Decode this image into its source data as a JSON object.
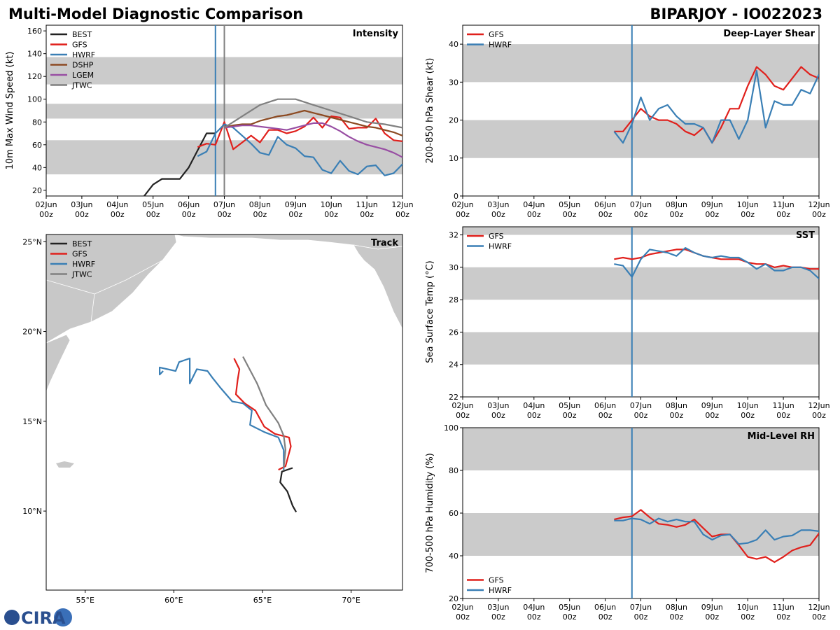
{
  "header": {
    "title_left": "Multi-Model Diagnostic Comparison",
    "title_right": "BIPARJOY - IO022023",
    "logo": "CIRA"
  },
  "chart_data": [
    {
      "type": "line",
      "title": "Intensity",
      "ylabel": "10m Max Wind Speed (kt)",
      "xlim": [
        "02Jun 00z",
        "12Jun 00z"
      ],
      "xticks": [
        "02Jun 00z",
        "03Jun 00z",
        "04Jun 00z",
        "05Jun 00z",
        "06Jun 00z",
        "07Jun 00z",
        "08Jun 00z",
        "09Jun 00z",
        "10Jun 00z",
        "11Jun 00z",
        "12Jun 00z"
      ],
      "ylim": [
        15,
        165
      ],
      "yticks": [
        20,
        40,
        60,
        80,
        100,
        120,
        140,
        160
      ],
      "bands": [
        [
          34,
          64
        ],
        [
          83,
          96
        ],
        [
          113,
          137
        ]
      ],
      "markers": [
        {
          "x": "06Jun 18z",
          "color": "#3a7fb5"
        },
        {
          "x": "07Jun 00z",
          "color": "#808080"
        }
      ],
      "legend": "upper left",
      "x": [
        "06Jun 06z",
        "06Jun 12z",
        "06Jun 18z",
        "07Jun 00z",
        "07Jun 06z",
        "07Jun 12z",
        "07Jun 18z",
        "08Jun 00z",
        "08Jun 06z",
        "08Jun 12z",
        "08Jun 18z",
        "09Jun 00z",
        "09Jun 06z",
        "09Jun 12z",
        "09Jun 18z",
        "10Jun 00z",
        "10Jun 06z",
        "10Jun 12z",
        "10Jun 18z",
        "11Jun 00z",
        "11Jun 06z",
        "11Jun 12z",
        "11Jun 18z",
        "12Jun 00z"
      ],
      "series": [
        {
          "name": "BEST",
          "color": "#222222",
          "x": [
            "04Jun 18z",
            "05Jun 00z",
            "05Jun 06z",
            "05Jun 12z",
            "05Jun 18z",
            "06Jun 00z",
            "06Jun 06z",
            "06Jun 12z",
            "06Jun 18z"
          ],
          "values": [
            15,
            25,
            30,
            30,
            30,
            40,
            55,
            70,
            70
          ]
        },
        {
          "name": "GFS",
          "color": "#e0201c",
          "values": [
            58,
            61,
            60,
            80,
            56,
            62,
            68,
            62,
            73,
            73,
            70,
            72,
            76,
            84,
            75,
            85,
            84,
            74,
            75,
            75,
            83,
            70,
            64,
            63
          ]
        },
        {
          "name": "HWRF",
          "color": "#3a7fb5",
          "values": [
            50,
            54,
            70,
            78,
            75,
            68,
            61,
            53,
            51,
            67,
            60,
            57,
            50,
            49,
            38,
            35,
            46,
            37,
            34,
            41,
            42,
            33,
            35,
            43
          ]
        },
        {
          "name": "DSHP",
          "color": "#8c4a22",
          "x": [
            "07Jun 00z",
            "07Jun 06z",
            "07Jun 12z",
            "07Jun 18z",
            "08Jun 00z",
            "08Jun 06z",
            "08Jun 12z",
            "08Jun 18z",
            "09Jun 00z",
            "09Jun 06z",
            "09Jun 12z",
            "09Jun 18z",
            "10Jun 00z",
            "10Jun 06z",
            "10Jun 12z",
            "10Jun 18z",
            "11Jun 00z",
            "11Jun 06z",
            "11Jun 12z",
            "11Jun 18z",
            "12Jun 00z"
          ],
          "values": [
            75,
            77,
            78,
            78,
            81,
            83,
            85,
            86,
            88,
            90,
            88,
            86,
            84,
            82,
            80,
            78,
            76,
            75,
            73,
            71,
            68
          ]
        },
        {
          "name": "LGEM",
          "color": "#984ea3",
          "x": [
            "07Jun 00z",
            "07Jun 06z",
            "07Jun 12z",
            "07Jun 18z",
            "08Jun 00z",
            "08Jun 06z",
            "08Jun 12z",
            "08Jun 18z",
            "09Jun 00z",
            "09Jun 06z",
            "09Jun 12z",
            "09Jun 18z",
            "10Jun 00z",
            "10Jun 06z",
            "10Jun 12z",
            "10Jun 18z",
            "11Jun 00z",
            "11Jun 06z",
            "11Jun 12z",
            "11Jun 18z",
            "12Jun 00z"
          ],
          "values": [
            75,
            76,
            77,
            77,
            76,
            75,
            74,
            73,
            75,
            77,
            79,
            79,
            76,
            72,
            67,
            63,
            60,
            58,
            56,
            53,
            49
          ]
        },
        {
          "name": "JTWC",
          "color": "#808080",
          "x": [
            "07Jun 00z",
            "07Jun 12z",
            "08Jun 00z",
            "08Jun 12z",
            "09Jun 00z",
            "09Jun 12z",
            "10Jun 00z",
            "10Jun 12z",
            "11Jun 00z",
            "11Jun 12z",
            "12Jun 00z"
          ],
          "values": [
            75,
            85,
            95,
            100,
            100,
            95,
            90,
            85,
            80,
            78,
            75
          ]
        }
      ]
    },
    {
      "type": "map",
      "title": "Track",
      "xlim": [
        52.8,
        72.9
      ],
      "xticks": [
        {
          "value": 55,
          "label": "55°E"
        },
        {
          "value": 60,
          "label": "60°E"
        },
        {
          "value": 65,
          "label": "65°E"
        },
        {
          "value": 70,
          "label": "70°E"
        }
      ],
      "ylim": [
        5.6,
        25.4
      ],
      "yticks": [
        {
          "value": 10,
          "label": "10°N"
        },
        {
          "value": 15,
          "label": "15°N"
        },
        {
          "value": 20,
          "label": "20°N"
        },
        {
          "value": 25,
          "label": "25°N"
        }
      ],
      "legend": "upper left",
      "series": [
        {
          "name": "BEST",
          "color": "#222222",
          "x": [
            66.9,
            66.7,
            66.4,
            66.0,
            66.1,
            66.7
          ],
          "values": [
            9.95,
            10.3,
            11.1,
            11.6,
            12.2,
            12.4
          ]
        },
        {
          "name": "GFS",
          "color": "#e0201c",
          "x": [
            65.9,
            66.3,
            66.6,
            66.5,
            65.7,
            65.1,
            64.6,
            64.0,
            63.5,
            63.6,
            63.7,
            63.4
          ],
          "values": [
            12.3,
            12.5,
            13.6,
            14.1,
            14.3,
            14.7,
            15.6,
            16.0,
            16.5,
            17.3,
            17.9,
            18.5
          ]
        },
        {
          "name": "HWRF",
          "color": "#3a7fb5",
          "x": [
            66.2,
            66.2,
            65.9,
            65.1,
            64.3,
            64.4,
            63.9,
            63.3,
            62.6,
            62.2,
            61.9,
            61.3,
            60.9,
            60.9,
            60.3,
            60.1,
            59.2,
            59.2,
            59.4
          ],
          "values": [
            12.3,
            13.4,
            14.1,
            14.4,
            14.8,
            15.6,
            16.0,
            16.1,
            16.9,
            17.4,
            17.8,
            17.9,
            17.1,
            18.5,
            18.3,
            17.8,
            18.0,
            17.6,
            17.8
          ]
        },
        {
          "name": "JTWC",
          "color": "#808080",
          "x": [
            66.2,
            66.3,
            66.2,
            65.9,
            65.2,
            64.7,
            63.9
          ],
          "values": [
            12.4,
            13.4,
            14.2,
            14.9,
            15.9,
            17.1,
            18.6
          ]
        }
      ]
    },
    {
      "type": "line",
      "title": "Deep-Layer Shear",
      "ylabel": "200-850 hPa Shear (kt)",
      "xlim": [
        "02Jun 00z",
        "12Jun 00z"
      ],
      "xticks": [
        "02Jun 00z",
        "03Jun 00z",
        "04Jun 00z",
        "05Jun 00z",
        "06Jun 00z",
        "07Jun 00z",
        "08Jun 00z",
        "09Jun 00z",
        "10Jun 00z",
        "11Jun 00z",
        "12Jun 00z"
      ],
      "ylim": [
        0,
        45
      ],
      "yticks": [
        0,
        10,
        20,
        30,
        40
      ],
      "bands": [
        [
          10,
          20
        ],
        [
          30,
          40
        ]
      ],
      "markers": [
        {
          "x": "06Jun 18z",
          "color": "#3a7fb5"
        }
      ],
      "legend": "upper left",
      "x": [
        "06Jun 06z",
        "06Jun 12z",
        "06Jun 18z",
        "07Jun 00z",
        "07Jun 06z",
        "07Jun 12z",
        "07Jun 18z",
        "08Jun 00z",
        "08Jun 06z",
        "08Jun 12z",
        "08Jun 18z",
        "09Jun 00z",
        "09Jun 06z",
        "09Jun 12z",
        "09Jun 18z",
        "10Jun 00z",
        "10Jun 06z",
        "10Jun 12z",
        "10Jun 18z",
        "11Jun 00z",
        "11Jun 06z",
        "11Jun 12z",
        "11Jun 18z",
        "12Jun 00z"
      ],
      "series": [
        {
          "name": "GFS",
          "color": "#e0201c",
          "values": [
            17,
            17,
            20,
            23,
            21,
            20,
            20,
            19,
            17,
            16,
            18,
            14,
            18,
            23,
            23,
            29,
            34,
            32,
            29,
            28,
            31,
            34,
            32,
            31
          ]
        },
        {
          "name": "HWRF",
          "color": "#3a7fb5",
          "values": [
            17,
            14,
            19,
            26,
            20,
            23,
            24,
            21,
            19,
            19,
            18,
            14,
            20,
            20,
            15,
            20,
            33,
            18,
            25,
            24,
            24,
            28,
            27,
            32
          ]
        }
      ]
    },
    {
      "type": "line",
      "title": "SST",
      "ylabel": "Sea Surface Temp (°C)",
      "xlim": [
        "02Jun 00z",
        "12Jun 00z"
      ],
      "xticks": [
        "02Jun 00z",
        "03Jun 00z",
        "04Jun 00z",
        "05Jun 00z",
        "06Jun 00z",
        "07Jun 00z",
        "08Jun 00z",
        "09Jun 00z",
        "10Jun 00z",
        "11Jun 00z",
        "12Jun 00z"
      ],
      "ylim": [
        22,
        32.5
      ],
      "yticks": [
        22,
        24,
        26,
        28,
        30,
        32
      ],
      "bands": [
        [
          24,
          26
        ],
        [
          28,
          30
        ],
        [
          32,
          34
        ]
      ],
      "markers": [
        {
          "x": "06Jun 18z",
          "color": "#3a7fb5"
        }
      ],
      "legend": "upper left",
      "x": [
        "06Jun 06z",
        "06Jun 12z",
        "06Jun 18z",
        "07Jun 00z",
        "07Jun 06z",
        "07Jun 12z",
        "07Jun 18z",
        "08Jun 00z",
        "08Jun 06z",
        "08Jun 12z",
        "08Jun 18z",
        "09Jun 00z",
        "09Jun 06z",
        "09Jun 12z",
        "09Jun 18z",
        "10Jun 00z",
        "10Jun 06z",
        "10Jun 12z",
        "10Jun 18z",
        "11Jun 00z",
        "11Jun 06z",
        "11Jun 12z",
        "11Jun 18z",
        "12Jun 00z"
      ],
      "series": [
        {
          "name": "GFS",
          "color": "#e0201c",
          "values": [
            30.5,
            30.6,
            30.5,
            30.6,
            30.8,
            30.9,
            31.0,
            31.1,
            31.1,
            30.9,
            30.7,
            30.6,
            30.5,
            30.5,
            30.5,
            30.3,
            30.2,
            30.2,
            30.0,
            30.1,
            30.0,
            30.0,
            29.9,
            29.9
          ]
        },
        {
          "name": "HWRF",
          "color": "#3a7fb5",
          "values": [
            30.2,
            30.1,
            29.4,
            30.5,
            31.1,
            31.0,
            30.9,
            30.7,
            31.2,
            30.9,
            30.7,
            30.6,
            30.7,
            30.6,
            30.6,
            30.3,
            29.9,
            30.2,
            29.8,
            29.8,
            30.0,
            30.0,
            29.8,
            29.3
          ]
        }
      ]
    },
    {
      "type": "line",
      "title": "Mid-Level RH",
      "ylabel": "700-500 hPa Humidity (%)",
      "xlim": [
        "02Jun 00z",
        "12Jun 00z"
      ],
      "xticks": [
        "02Jun 00z",
        "03Jun 00z",
        "04Jun 00z",
        "05Jun 00z",
        "06Jun 00z",
        "07Jun 00z",
        "08Jun 00z",
        "09Jun 00z",
        "10Jun 00z",
        "11Jun 00z",
        "12Jun 00z"
      ],
      "ylim": [
        20,
        100
      ],
      "yticks": [
        20,
        40,
        60,
        80,
        100
      ],
      "bands": [
        [
          40,
          60
        ],
        [
          80,
          100
        ]
      ],
      "markers": [
        {
          "x": "06Jun 18z",
          "color": "#3a7fb5"
        }
      ],
      "legend": "lower left",
      "x": [
        "06Jun 06z",
        "06Jun 12z",
        "06Jun 18z",
        "07Jun 00z",
        "07Jun 06z",
        "07Jun 12z",
        "07Jun 18z",
        "08Jun 00z",
        "08Jun 06z",
        "08Jun 12z",
        "08Jun 18z",
        "09Jun 00z",
        "09Jun 06z",
        "09Jun 12z",
        "09Jun 18z",
        "10Jun 00z",
        "10Jun 06z",
        "10Jun 12z",
        "10Jun 18z",
        "11Jun 00z",
        "11Jun 06z",
        "11Jun 12z",
        "11Jun 18z",
        "12Jun 00z"
      ],
      "series": [
        {
          "name": "GFS",
          "color": "#e0201c",
          "values": [
            57,
            58,
            58.5,
            61.5,
            58,
            55,
            54.5,
            53.5,
            54.5,
            57,
            53,
            49,
            50,
            50,
            45,
            39.5,
            38.5,
            39.5,
            37,
            39.5,
            42.5,
            44,
            45,
            50.5
          ]
        },
        {
          "name": "HWRF",
          "color": "#3a7fb5",
          "values": [
            56.5,
            56.5,
            57.5,
            57,
            55,
            57.5,
            56,
            57,
            56,
            56,
            50,
            47.5,
            49.5,
            50,
            45.5,
            46,
            47.5,
            52,
            47.5,
            49,
            49.5,
            52,
            52,
            51.5
          ]
        }
      ]
    }
  ]
}
